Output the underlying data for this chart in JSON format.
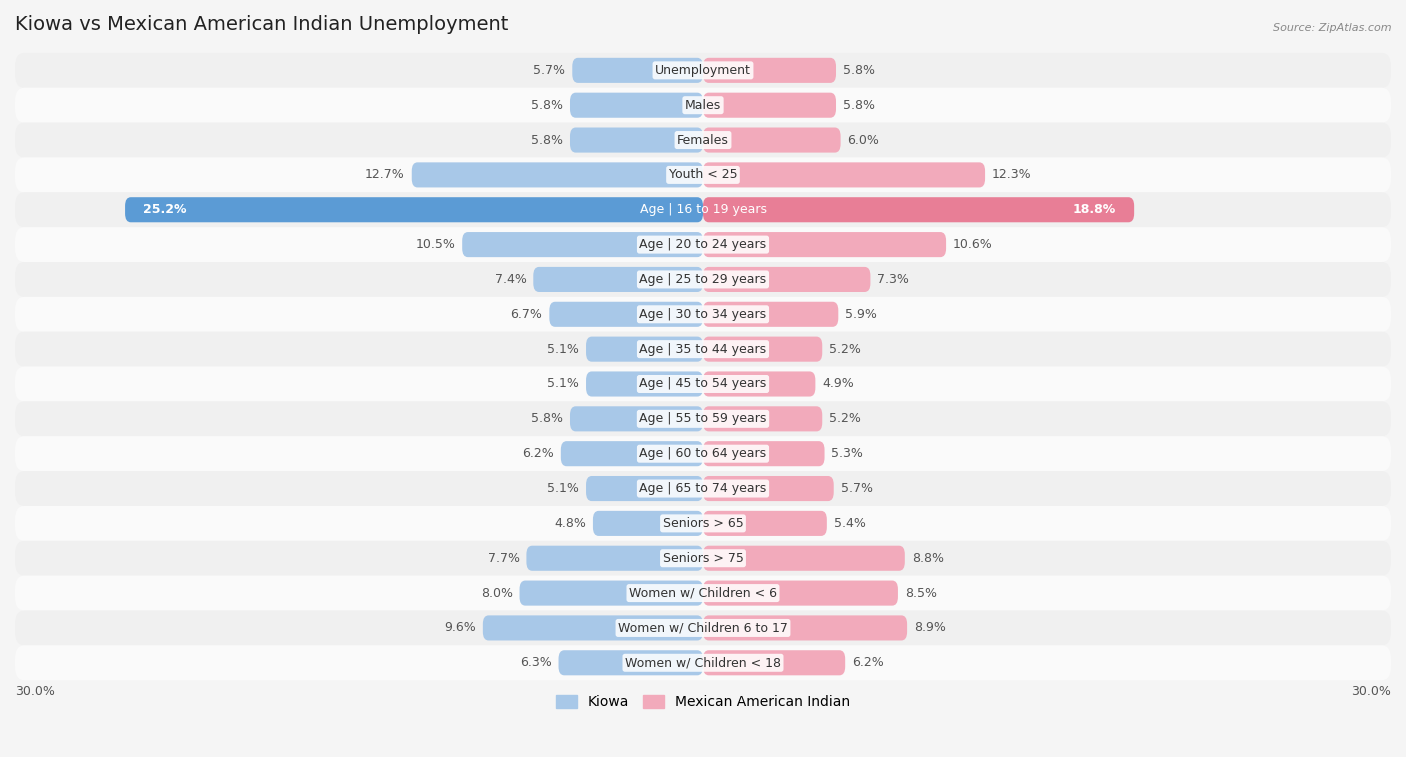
{
  "title": "Kiowa vs Mexican American Indian Unemployment",
  "source": "Source: ZipAtlas.com",
  "categories": [
    "Unemployment",
    "Males",
    "Females",
    "Youth < 25",
    "Age | 16 to 19 years",
    "Age | 20 to 24 years",
    "Age | 25 to 29 years",
    "Age | 30 to 34 years",
    "Age | 35 to 44 years",
    "Age | 45 to 54 years",
    "Age | 55 to 59 years",
    "Age | 60 to 64 years",
    "Age | 65 to 74 years",
    "Seniors > 65",
    "Seniors > 75",
    "Women w/ Children < 6",
    "Women w/ Children 6 to 17",
    "Women w/ Children < 18"
  ],
  "kiowa_values": [
    5.7,
    5.8,
    5.8,
    12.7,
    25.2,
    10.5,
    7.4,
    6.7,
    5.1,
    5.1,
    5.8,
    6.2,
    5.1,
    4.8,
    7.7,
    8.0,
    9.6,
    6.3
  ],
  "mexican_values": [
    5.8,
    5.8,
    6.0,
    12.3,
    18.8,
    10.6,
    7.3,
    5.9,
    5.2,
    4.9,
    5.2,
    5.3,
    5.7,
    5.4,
    8.8,
    8.5,
    8.9,
    6.2
  ],
  "kiowa_color": "#A8C8E8",
  "mexican_color": "#F2AABB",
  "kiowa_highlight_color": "#5B9BD5",
  "mexican_highlight_color": "#E87E96",
  "row_colors": [
    "#f0f0f0",
    "#fafafa"
  ],
  "background_color": "#f5f5f5",
  "xlim": 30.0,
  "legend_labels": [
    "Kiowa",
    "Mexican American Indian"
  ],
  "title_fontsize": 14,
  "label_fontsize": 9,
  "cat_fontsize": 9
}
